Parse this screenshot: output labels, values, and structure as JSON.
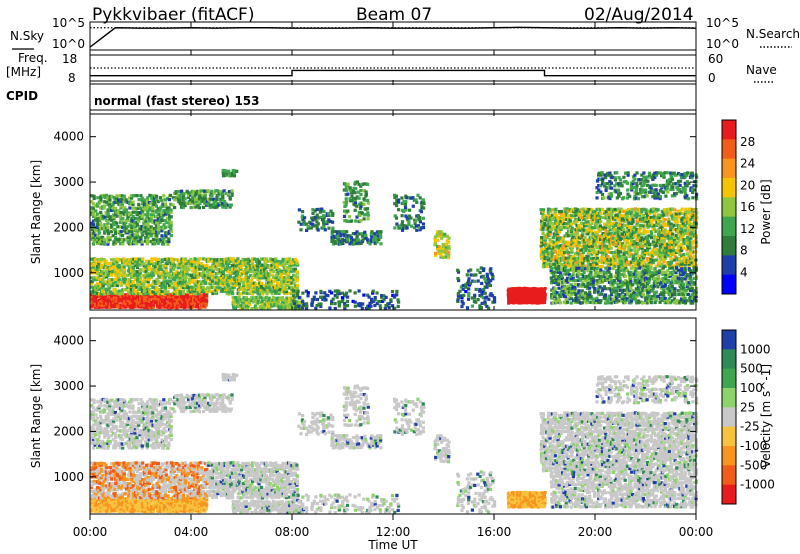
{
  "header": {
    "station": "Pykkvibaer (fitACF)",
    "beam": "Beam 07",
    "date": "02/Aug/2014"
  },
  "top_panels": {
    "nsky_label": "N.Sky",
    "nsearch_label": "N.Search",
    "freq_label_1": "Freq.",
    "freq_label_2": "[MHz]",
    "nave_label": "Nave",
    "cpid_label": "CPID",
    "cpid_value": "normal (fast stereo) 153",
    "noise_left_ticks": [
      "10^5",
      "10^0"
    ],
    "noise_right_ticks": [
      "10^5",
      "10^0"
    ],
    "freq_left_ticks": [
      "18",
      "8"
    ],
    "freq_right_ticks": [
      "60",
      "0"
    ]
  },
  "chart_data": [
    {
      "type": "line",
      "name": "noise",
      "series": [
        {
          "name": "N.Sky",
          "style": "solid",
          "x": [
            0,
            1,
            2,
            3,
            4,
            5,
            6,
            7,
            8,
            9,
            10,
            11,
            12,
            13,
            14,
            15,
            16,
            17,
            18,
            19,
            20,
            21,
            22,
            23,
            24
          ],
          "values": [
            0.2,
            4.6,
            4.5,
            4.5,
            4.6,
            4.5,
            4.6,
            4.6,
            4.5,
            4.5,
            4.5,
            4.6,
            4.5,
            4.5,
            4.5,
            4.5,
            4.6,
            4.7,
            4.6,
            4.5,
            4.5,
            4.6,
            4.5,
            4.6,
            4.5
          ]
        },
        {
          "name": "N.Search",
          "style": "dotted",
          "x": [
            0,
            24
          ],
          "values": [
            4.6,
            4.6
          ]
        }
      ]
    },
    {
      "type": "line",
      "name": "frequency_nave",
      "series": [
        {
          "name": "Freq",
          "style": "solid",
          "x": [
            0,
            8,
            8,
            18,
            18,
            24
          ],
          "values": [
            9.8,
            9.8,
            12.0,
            12.0,
            9.8,
            9.8
          ]
        },
        {
          "name": "Nave",
          "style": "dotted",
          "x": [
            0,
            24
          ],
          "values": [
            13.0,
            13.0
          ]
        }
      ],
      "ylim": [
        8,
        18
      ]
    },
    {
      "type": "heatmap",
      "name": "power",
      "xlabel": "",
      "ylabel": "Slant Range [km]",
      "xlim": [
        0,
        24
      ],
      "ylim": [
        180,
        4500
      ],
      "yticks": [
        1000,
        2000,
        3000,
        4000
      ],
      "colorbar_label": "Power [dB]",
      "colorbar_ticks": [
        "4",
        "8",
        "12",
        "16",
        "20",
        "24",
        "28"
      ],
      "colormap": [
        "#0000ff",
        "#1f3fa8",
        "#2e7d3a",
        "#3fa64f",
        "#8ec63f",
        "#f5c400",
        "#f7951e",
        "#f25c19",
        "#e81c1c"
      ]
    },
    {
      "type": "heatmap",
      "name": "velocity",
      "xlabel": "Time UT",
      "ylabel": "Slant Range [km]",
      "xlim": [
        0,
        24
      ],
      "ylim": [
        180,
        4500
      ],
      "yticks": [
        1000,
        2000,
        3000,
        4000
      ],
      "xticks": [
        "00:00",
        "04:00",
        "08:00",
        "12:00",
        "16:00",
        "20:00",
        "00:00"
      ],
      "colorbar_label": "Velocity [m s^-1]",
      "colorbar_ticks": [
        "1000",
        "500",
        "100",
        "25",
        "-25",
        "-100",
        "-500",
        "-1000"
      ],
      "colormap": [
        "#1f3fa8",
        "#2e8b57",
        "#3fa64f",
        "#8cd36a",
        "#c8c8c8",
        "#f7c23e",
        "#f7951e",
        "#f25c19",
        "#e81c1c"
      ]
    }
  ]
}
